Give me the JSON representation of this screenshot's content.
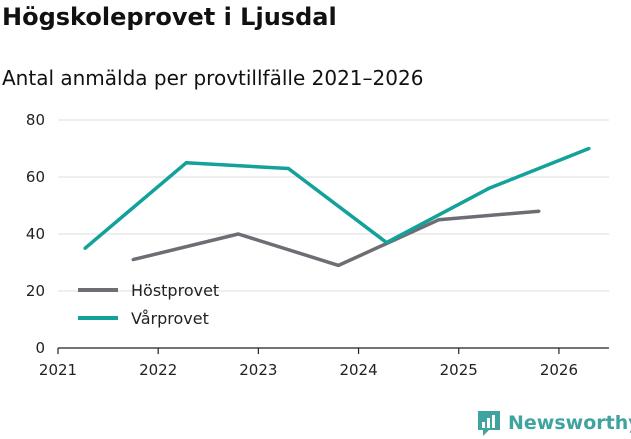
{
  "header": {
    "title": "Högskoleprovet i Ljusdal",
    "subtitle": "Antal anmälda per provtillfälle 2021–2026"
  },
  "brand": {
    "name": "Newsworthy",
    "color": "#3fa3a0"
  },
  "chart_data": {
    "type": "line",
    "title": "Högskoleprovet i Ljusdal",
    "subtitle": "Antal anmälda per provtillfälle 2021–2026",
    "xlabel": "",
    "ylabel": "",
    "xlim": [
      2021,
      2026.5
    ],
    "ylim": [
      0,
      80
    ],
    "x_ticks": [
      2021,
      2022,
      2023,
      2024,
      2025,
      2026
    ],
    "y_ticks": [
      0,
      20,
      40,
      60,
      80
    ],
    "grid": true,
    "legend_position": "bottom-left",
    "series": [
      {
        "name": "Höstprovet",
        "color": "#6e6d73",
        "x": [
          2021.75,
          2022.8,
          2023.8,
          2024.8,
          2025.8
        ],
        "values": [
          31,
          40,
          29,
          45,
          48
        ]
      },
      {
        "name": "Vårprovet",
        "color": "#13a19a",
        "x": [
          2021.27,
          2022.28,
          2023.3,
          2024.28,
          2025.3,
          2026.3
        ],
        "values": [
          35,
          65,
          63,
          37,
          56,
          70
        ]
      }
    ]
  }
}
